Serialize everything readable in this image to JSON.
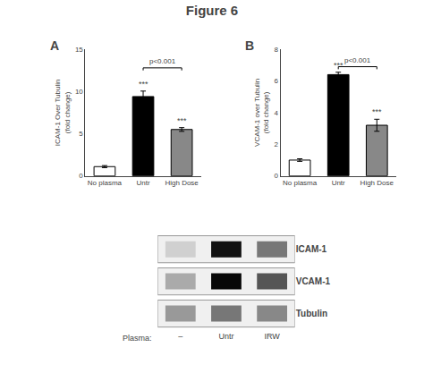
{
  "title": "Figure 6",
  "chart_data": [
    {
      "type": "bar",
      "title": "A",
      "categories": [
        "No plasma",
        "Untr",
        "High Dose"
      ],
      "values": [
        1.1,
        9.4,
        5.5
      ],
      "errors": [
        0.12,
        0.65,
        0.22
      ],
      "colors": [
        "white",
        "black",
        "#888888"
      ],
      "ylabel": "ICAM-1 Over Tubulin\n(fold change)",
      "ylim": [
        0,
        15
      ],
      "yticks": [
        0,
        5,
        10,
        15
      ],
      "grid": false,
      "annotations": [
        {
          "text": "***",
          "category": "Untr"
        },
        {
          "text": "***",
          "category": "High Dose"
        },
        {
          "text": "p<0.001",
          "from": "Untr",
          "to": "High Dose",
          "y": 12.8
        }
      ]
    },
    {
      "type": "bar",
      "title": "B",
      "categories": [
        "No plasma",
        "Untr",
        "High Dose"
      ],
      "values": [
        1.0,
        6.4,
        3.2
      ],
      "errors": [
        0.08,
        0.15,
        0.38
      ],
      "colors": [
        "white",
        "black",
        "#888888"
      ],
      "ylabel": "VCAM-1 over Tubulin\n(fold change)",
      "ylim": [
        0,
        8
      ],
      "yticks": [
        0,
        2,
        4,
        6,
        8
      ],
      "grid": false,
      "annotations": [
        {
          "text": "***",
          "category": "Untr"
        },
        {
          "text": "***",
          "category": "High Dose"
        },
        {
          "text": "p<0.001",
          "from": "Untr",
          "to": "High Dose",
          "y": 6.9
        }
      ]
    },
    {
      "type": "blot",
      "xlabel": "Plasma:",
      "categories": [
        "–",
        "Untr",
        "IRW"
      ],
      "series": [
        {
          "name": "ICAM-1",
          "colors": [
            "#d0d0d0",
            "#111111",
            "#777777"
          ]
        },
        {
          "name": "VCAM-1",
          "colors": [
            "#aaaaaa",
            "#080808",
            "#555555"
          ]
        },
        {
          "name": "Tubulin",
          "colors": [
            "#999999",
            "#777777",
            "#888888"
          ]
        }
      ]
    }
  ]
}
